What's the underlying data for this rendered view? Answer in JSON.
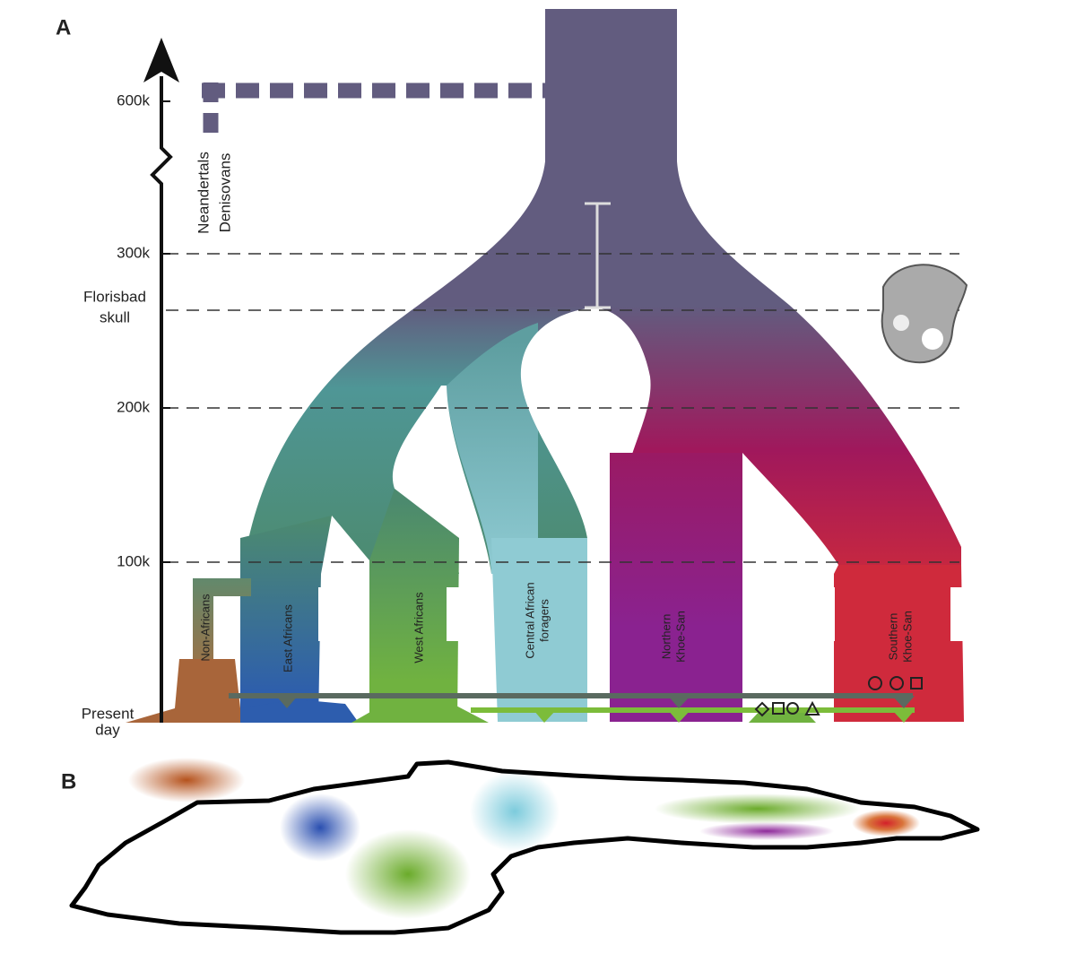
{
  "panel_a": {
    "label": "A",
    "time_axis": {
      "t600k": "600k",
      "t300k": "300k",
      "florisbad": [
        "Florisbad",
        "skull"
      ],
      "t200k": "200k",
      "t100k": "100k",
      "present": [
        "Present",
        "day"
      ]
    },
    "archaic": [
      "Neandertals",
      "Denisovans"
    ],
    "populations": [
      {
        "lines": [
          "Non-Africans"
        ]
      },
      {
        "lines": [
          "East Africans"
        ]
      },
      {
        "lines": [
          "West Africans"
        ]
      },
      {
        "lines": [
          "Central African",
          "foragers"
        ]
      },
      {
        "lines": [
          "Northern",
          "Khoe-San"
        ]
      },
      {
        "lines": [
          "Southern",
          "Khoe-San"
        ]
      }
    ]
  },
  "panel_b": {
    "label": "B"
  }
}
